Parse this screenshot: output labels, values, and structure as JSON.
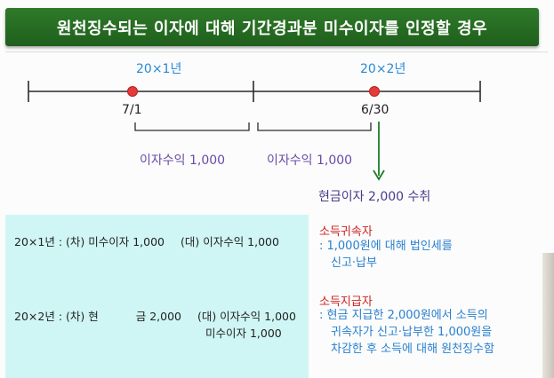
{
  "title": "원천징수되는 이자에 대해 기간경과분 미수이자를 인정할 경우",
  "timeline": {
    "year1": "20×1년",
    "year2": "20×2년",
    "date1": "7/1",
    "date2": "6/30",
    "interest1": "이자수익 1,000",
    "interest2": "이자수익 1,000",
    "cash_receipt": "현금이자 2,000 수취",
    "colors": {
      "line": "#2b2b2b",
      "point": "#e53a3a",
      "arrow": "#1f7a2a",
      "brace": "#2b2b2b"
    }
  },
  "journal": {
    "row1": {
      "year": "20×1년",
      "debit_label": ": (차) 미수이자 1,000",
      "credit": "(대) 이자수익 1,000"
    },
    "row2": {
      "year": "20×2년",
      "debit_label": ": (차) 현",
      "debit_amount": "금 2,000",
      "credit1": "(대) 이자수익 1,000",
      "credit2": "미수이자 1,000"
    }
  },
  "notes": {
    "income_owner": {
      "title": "소득귀속자",
      "lines": [
        ": 1,000원에 대해 법인세를",
        "신고·납부"
      ]
    },
    "income_payer": {
      "title": "소득지급자",
      "lines": [
        ": 현금 지급한 2,000원에서 소득의",
        "귀속자가 신고·납부한 1,000원을",
        "차감한 후 소득에 대해 원천징수함"
      ]
    }
  }
}
